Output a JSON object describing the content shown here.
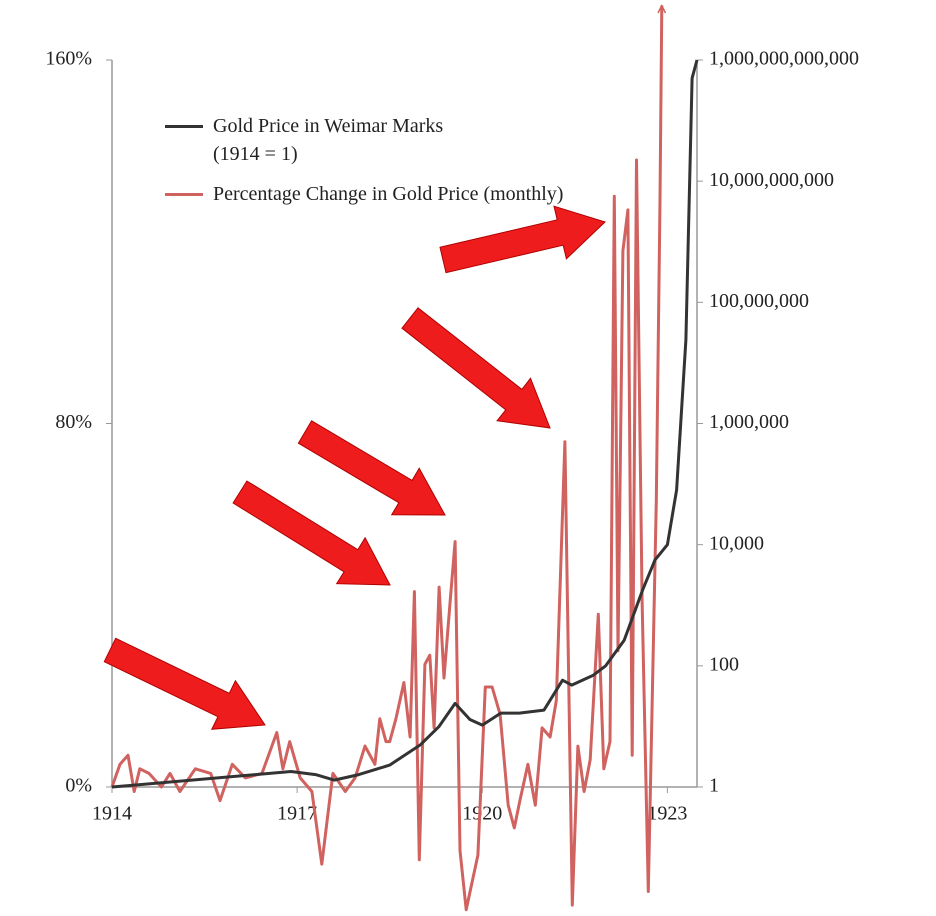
{
  "chart_data": {
    "type": "line",
    "xlim": [
      1914,
      1923.48
    ],
    "xticks": [
      1914,
      1917,
      1920,
      1923
    ],
    "ylim": [
      0,
      160
    ],
    "yticks": [
      {
        "value": 0,
        "label": "0%"
      },
      {
        "value": 80,
        "label": "80%"
      },
      {
        "value": 160,
        "label": "160%"
      }
    ],
    "y2lim": [
      1,
      1000000000000
    ],
    "y2log": true,
    "y2ticks": [
      {
        "value": 1,
        "label": "1"
      },
      {
        "value": 100,
        "label": "100"
      },
      {
        "value": 10000,
        "label": "10,000"
      },
      {
        "value": 1000000,
        "label": "1,000,000"
      },
      {
        "value": 100000000,
        "label": "100,000,000"
      },
      {
        "value": 10000000000,
        "label": "10,000,000,000"
      },
      {
        "value": 1000000000000,
        "label": "1,000,000,000,000"
      }
    ],
    "legend": "top-left",
    "series": [
      {
        "name": "Percentage Change in Gold Price (monthly)",
        "color": "#d0625f",
        "x": [
          1914.0,
          1914.13,
          1914.26,
          1914.36,
          1914.45,
          1914.6,
          1914.8,
          1914.94,
          1915.1,
          1915.35,
          1915.6,
          1915.75,
          1915.95,
          1916.16,
          1916.43,
          1916.67,
          1916.77,
          1916.88,
          1917.05,
          1917.24,
          1917.4,
          1917.58,
          1917.78,
          1917.94,
          1918.1,
          1918.26,
          1918.34,
          1918.44,
          1918.5,
          1918.6,
          1918.73,
          1918.83,
          1918.9,
          1918.98,
          1919.07,
          1919.15,
          1919.22,
          1919.3,
          1919.38,
          1919.48,
          1919.56,
          1919.64,
          1919.74,
          1919.85,
          1919.93,
          1920.05,
          1920.16,
          1920.29,
          1920.42,
          1920.52,
          1920.61,
          1920.74,
          1920.86,
          1920.97,
          1921.1,
          1921.2,
          1921.34,
          1921.46,
          1921.55,
          1921.65,
          1921.75,
          1921.88,
          1921.97,
          1922.07,
          1922.14,
          1922.2,
          1922.28,
          1922.36,
          1922.43,
          1922.5,
          1922.59,
          1922.69,
          1922.82,
          1922.88,
          1922.91
        ],
        "values": [
          0,
          5,
          7,
          -1,
          4,
          3,
          0,
          3,
          -1,
          4,
          3,
          -3,
          5,
          2,
          3,
          12,
          4,
          10,
          2,
          -1,
          -17,
          3,
          -1,
          2,
          9,
          5,
          15,
          10,
          10,
          15,
          23,
          11,
          43,
          -16,
          27,
          29,
          13,
          44,
          24,
          41,
          54,
          -14,
          -27,
          -20,
          -15,
          22,
          22,
          16,
          -4,
          -9,
          -3,
          5,
          -4,
          13,
          11,
          19,
          76,
          -26,
          9,
          -1,
          6,
          38,
          4,
          10,
          130,
          30,
          118,
          127,
          7,
          138,
          41,
          -23,
          63,
          129,
          172
        ]
      },
      {
        "name": "Gold Price in Weimar Marks (1914 = 1)",
        "color": "#333333",
        "axis": "y2",
        "x": [
          1914.0,
          1916.9,
          1917.3,
          1917.6,
          1918.0,
          1918.5,
          1919.0,
          1919.3,
          1919.56,
          1919.8,
          1920.0,
          1920.3,
          1920.6,
          1921.0,
          1921.3,
          1921.45,
          1921.8,
          1922.0,
          1922.3,
          1922.6,
          1922.8,
          1923.0,
          1923.15,
          1923.3,
          1923.4,
          1923.48
        ],
        "values": [
          1,
          1.8,
          1.6,
          1.3,
          1.6,
          2.3,
          5,
          10,
          24,
          13,
          10.5,
          16.6,
          16.6,
          18.6,
          58,
          48,
          70,
          100,
          265,
          1800,
          5600,
          10000,
          80000,
          24000000,
          500000000000,
          1000000000000
        ]
      }
    ]
  }
}
